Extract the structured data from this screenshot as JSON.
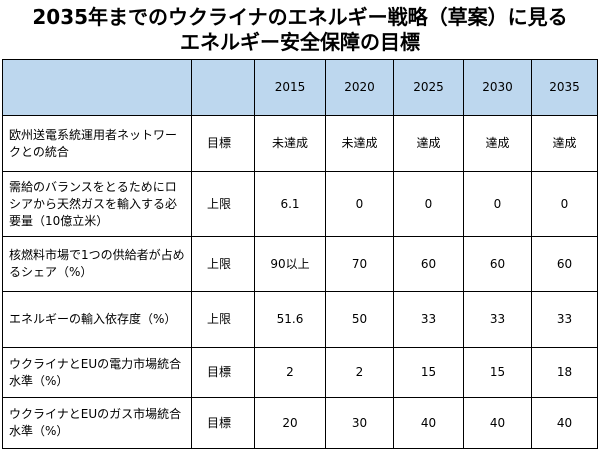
{
  "title": {
    "line1": "2035年までのウクライナのエネルギー戦略（草案）に見る",
    "line2": "エネルギー安全保障の目標"
  },
  "table": {
    "header": {
      "label": "",
      "kind": "",
      "years": [
        "2015",
        "2020",
        "2025",
        "2030",
        "2035"
      ]
    },
    "rows": [
      {
        "label": "欧州送電系統運用者ネットワークとの統合",
        "kind": "目標",
        "values": [
          "未達成",
          "未達成",
          "達成",
          "達成",
          "達成"
        ]
      },
      {
        "label": "需給のバランスをとるためにロシアから天然ガスを輸入する必要量（10億立米）",
        "kind": "上限",
        "values": [
          "6.1",
          "0",
          "0",
          "0",
          "0"
        ]
      },
      {
        "label": "核燃料市場で1つの供給者が占めるシェア（%）",
        "kind": "上限",
        "values": [
          "90以上",
          "70",
          "60",
          "60",
          "60"
        ]
      },
      {
        "label": "エネルギーの輸入依存度（%）",
        "kind": "上限",
        "values": [
          "51.6",
          "50",
          "33",
          "33",
          "33"
        ]
      },
      {
        "label": "ウクライナとEUの電力市場統合水準（%）",
        "kind": "目標",
        "values": [
          "2",
          "2",
          "15",
          "15",
          "18"
        ]
      },
      {
        "label": "ウクライナとEUのガス市場統合水準（%）",
        "kind": "目標",
        "values": [
          "20",
          "30",
          "40",
          "40",
          "40"
        ]
      }
    ]
  }
}
